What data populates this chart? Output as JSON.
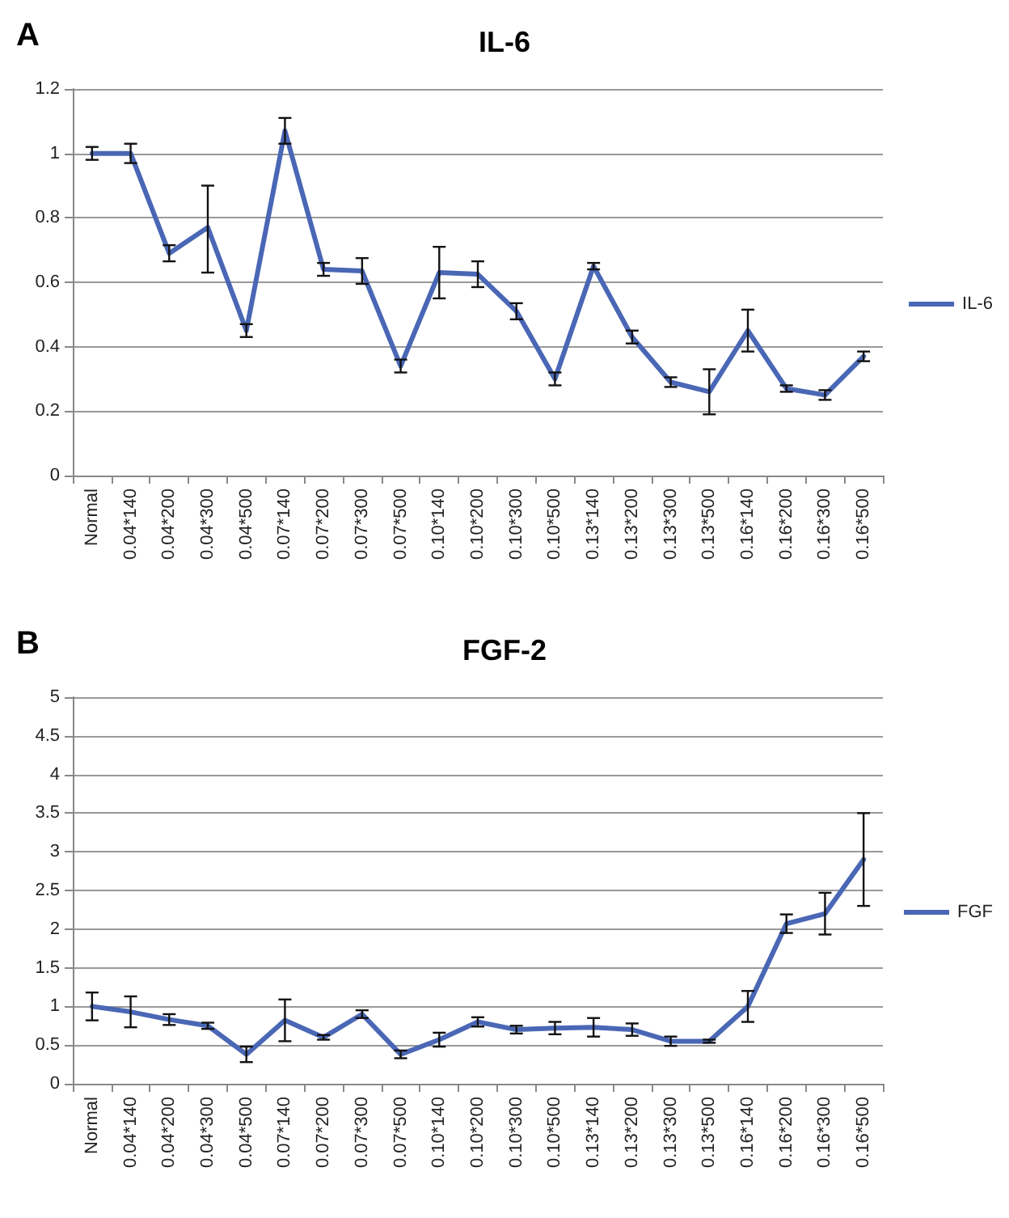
{
  "chart_data": [
    {
      "type": "line",
      "title": "IL-6",
      "annotations": [
        "A"
      ],
      "categories": [
        "Normal",
        "0.04*140",
        "0.04*200",
        "0.04*300",
        "0.04*500",
        "0.07*140",
        "0.07*200",
        "0.07*300",
        "0.07*500",
        "0.10*140",
        "0.10*200",
        "0.10*300",
        "0.10*500",
        "0.13*140",
        "0.13*200",
        "0.13*300",
        "0.13*500",
        "0.16*140",
        "0.16*200",
        "0.16*300",
        "0.16*500"
      ],
      "series": [
        {
          "name": "IL-6",
          "color": "#4a67b5",
          "values": [
            1.0,
            1.0,
            0.69,
            0.77,
            0.45,
            1.07,
            0.64,
            0.635,
            0.34,
            0.63,
            0.625,
            0.51,
            0.3,
            0.65,
            0.43,
            0.29,
            0.26,
            0.45,
            0.27,
            0.25,
            0.37
          ],
          "errors": [
            0.02,
            0.03,
            0.025,
            [
              0.63,
              0.9
            ],
            0.02,
            0.04,
            0.02,
            0.04,
            0.02,
            0.08,
            0.04,
            0.025,
            0.02,
            0.01,
            0.02,
            0.015,
            [
              0.19,
              0.33
            ],
            0.065,
            0.01,
            0.015,
            0.015
          ]
        }
      ],
      "ylim": [
        0,
        1.2
      ],
      "yticks": [
        0,
        0.2,
        0.4,
        0.6,
        0.8,
        1,
        1.2
      ],
      "grid": "y",
      "legend": "right",
      "marker": "none",
      "line_style": "solid"
    },
    {
      "type": "line",
      "title": "FGF-2",
      "annotations": [
        "B"
      ],
      "categories": [
        "Normal",
        "0.04*140",
        "0.04*200",
        "0.04*300",
        "0.04*500",
        "0.07*140",
        "0.07*200",
        "0.07*300",
        "0.07*500",
        "0.10*140",
        "0.10*200",
        "0.10*300",
        "0.10*500",
        "0.13*140",
        "0.13*200",
        "0.13*300",
        "0.13*500",
        "0.16*140",
        "0.16*200",
        "0.16*300",
        "0.16*500"
      ],
      "series": [
        {
          "name": "FGF",
          "color": "#4a67b5",
          "values": [
            1.0,
            0.93,
            0.83,
            0.75,
            0.38,
            0.82,
            0.6,
            0.9,
            0.38,
            0.57,
            0.8,
            0.7,
            0.72,
            0.73,
            0.7,
            0.55,
            0.55,
            1.0,
            2.07,
            2.2,
            2.9
          ],
          "errors": [
            0.18,
            0.2,
            0.07,
            0.04,
            0.1,
            0.27,
            0.03,
            0.05,
            0.05,
            0.09,
            0.06,
            0.05,
            0.08,
            0.12,
            0.08,
            0.06,
            0.02,
            0.2,
            0.12,
            0.27,
            0.6
          ]
        }
      ],
      "ylim": [
        0,
        5
      ],
      "yticks": [
        0,
        0.5,
        1,
        1.5,
        2,
        2.5,
        3,
        3.5,
        4,
        4.5,
        5
      ],
      "grid": "y",
      "legend": "right",
      "marker": "none",
      "line_style": "solid"
    }
  ]
}
